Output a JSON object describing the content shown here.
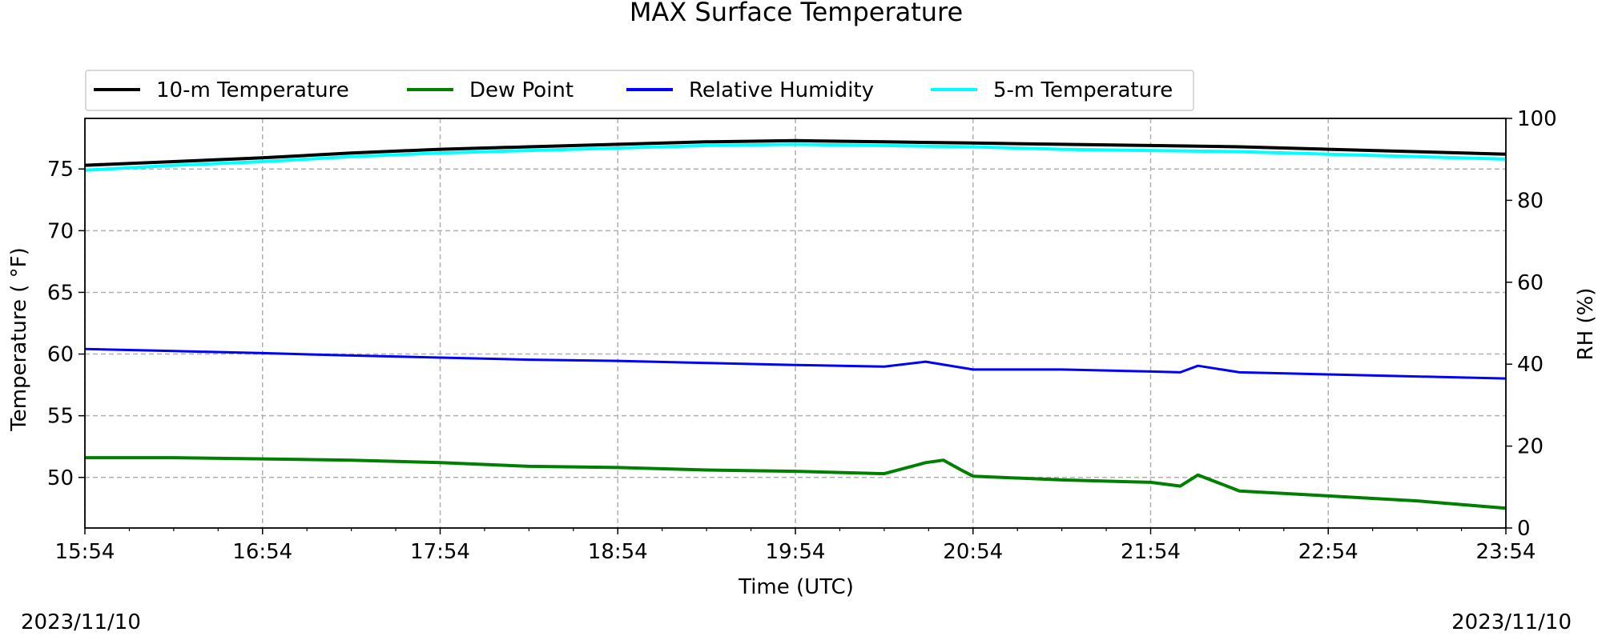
{
  "chart_data": {
    "type": "line",
    "title": "MAX Surface Temperature",
    "xlabel": "Time (UTC)",
    "ylabel": "Temperature ( $^\\circ$F)",
    "ylabel_display": "Temperature ( °F)",
    "y2label": "RH (%)",
    "date_left": "2023/11/10",
    "date_right": "2023/11/10",
    "x_ticks": [
      "15:54",
      "16:54",
      "17:54",
      "18:54",
      "19:54",
      "20:54",
      "21:54",
      "22:54",
      "23:54"
    ],
    "xlim_minutes": [
      0,
      480
    ],
    "ylim": [
      45.9,
      79.1
    ],
    "y_ticks": [
      "50",
      "55",
      "60",
      "65",
      "70",
      "75"
    ],
    "y2lim": [
      0,
      100
    ],
    "y2_ticks": [
      "0",
      "20",
      "40",
      "60",
      "80",
      "100"
    ],
    "grid": true,
    "legend": "top-left, above plot",
    "series": [
      {
        "name": "10-m Temperature",
        "axis": "left",
        "color": "#000000",
        "x_time": [
          "15:54",
          "16:24",
          "16:54",
          "17:24",
          "17:54",
          "18:24",
          "18:54",
          "19:24",
          "19:54",
          "20:24",
          "20:54",
          "21:24",
          "21:54",
          "22:24",
          "22:54",
          "23:24",
          "23:54"
        ],
        "y": [
          75.3,
          75.6,
          75.9,
          76.3,
          76.6,
          76.8,
          77.0,
          77.2,
          77.3,
          77.2,
          77.1,
          77.0,
          76.9,
          76.8,
          76.6,
          76.4,
          76.2
        ]
      },
      {
        "name": "Dew Point",
        "axis": "left",
        "color": "#008000",
        "x_time": [
          "15:54",
          "16:24",
          "16:54",
          "17:24",
          "17:54",
          "18:24",
          "18:54",
          "19:24",
          "19:54",
          "20:24",
          "20:38",
          "20:44",
          "20:50",
          "20:54",
          "21:24",
          "21:54",
          "22:04",
          "22:10",
          "22:24",
          "22:54",
          "23:24",
          "23:54"
        ],
        "y": [
          51.6,
          51.6,
          51.5,
          51.4,
          51.2,
          50.9,
          50.8,
          50.6,
          50.5,
          50.3,
          51.2,
          51.4,
          50.6,
          50.1,
          49.8,
          49.6,
          49.3,
          50.2,
          48.9,
          48.5,
          48.1,
          47.5
        ]
      },
      {
        "name": "Relative Humidity",
        "axis": "right",
        "color": "#0000ff",
        "x_time": [
          "15:54",
          "16:24",
          "16:54",
          "17:24",
          "17:54",
          "18:24",
          "18:54",
          "19:24",
          "19:54",
          "20:24",
          "20:38",
          "20:54",
          "21:24",
          "21:54",
          "22:04",
          "22:10",
          "22:24",
          "22:54",
          "23:24",
          "23:54"
        ],
        "y": [
          43.7,
          43.2,
          42.7,
          42.1,
          41.6,
          41.1,
          40.8,
          40.3,
          39.8,
          39.4,
          40.6,
          38.7,
          38.7,
          38.2,
          38.0,
          39.6,
          38.0,
          37.5,
          37.0,
          36.5
        ]
      },
      {
        "name": "5-m Temperature",
        "axis": "left",
        "color": "#00ffff",
        "x_time": [
          "15:54",
          "16:24",
          "16:54",
          "17:24",
          "17:54",
          "18:24",
          "18:54",
          "19:24",
          "19:54",
          "20:24",
          "20:54",
          "21:24",
          "21:54",
          "22:24",
          "22:54",
          "23:24",
          "23:54"
        ],
        "y": [
          74.9,
          75.3,
          75.6,
          76.0,
          76.3,
          76.5,
          76.7,
          76.9,
          77.0,
          76.9,
          76.8,
          76.6,
          76.5,
          76.4,
          76.2,
          76.0,
          75.8
        ]
      }
    ]
  }
}
